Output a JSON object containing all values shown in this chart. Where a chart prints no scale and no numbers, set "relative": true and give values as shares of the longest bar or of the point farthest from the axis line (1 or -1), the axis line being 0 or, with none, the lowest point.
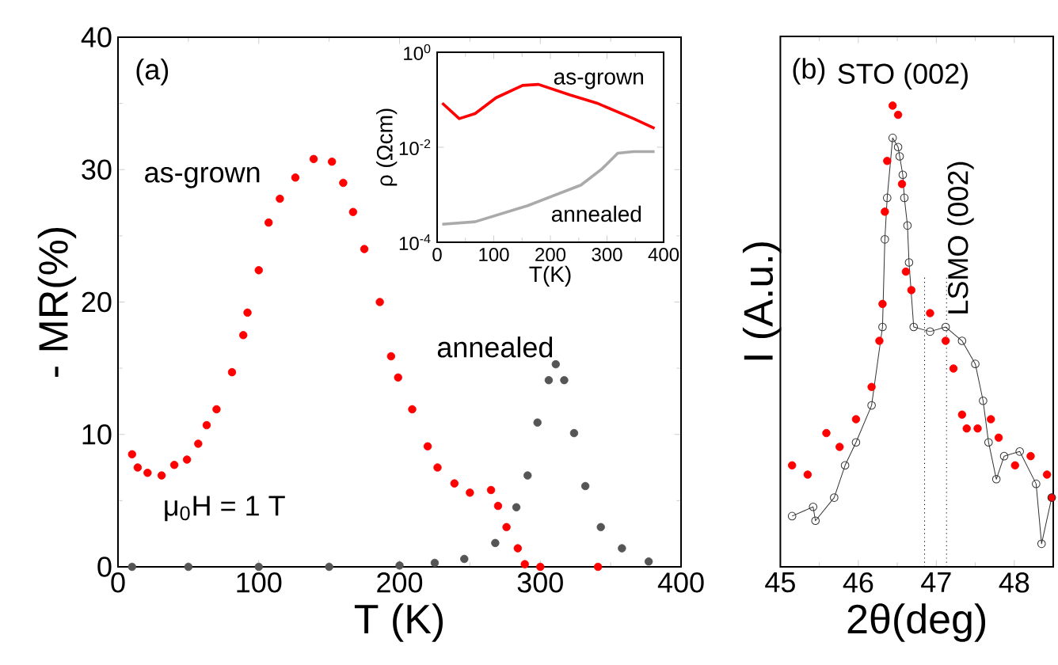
{
  "chart_data": [
    {
      "type": "scatter",
      "xlabel": "T (K)",
      "ylabel": "- MR(%)",
      "xlim": [
        0,
        400
      ],
      "ylim": [
        0,
        40
      ],
      "xticks": [
        0,
        100,
        200,
        300,
        400
      ],
      "yticks": [
        0,
        10,
        20,
        30,
        40
      ],
      "marker": "circle",
      "annotations": [
        "(a)",
        "μ$_{0}$H = 1 T"
      ],
      "series": [
        {
          "name": "as-grown",
          "color": "#ff0000",
          "x": [
            10,
            14,
            21,
            31,
            40,
            49,
            57,
            63,
            70,
            81,
            89,
            92,
            100,
            107,
            115,
            126,
            139,
            152,
            160,
            167,
            175,
            186,
            194,
            199,
            209,
            220,
            227,
            239,
            250,
            265,
            270,
            276,
            284,
            289,
            300,
            341
          ],
          "values": [
            8.5,
            7.5,
            7.1,
            6.9,
            7.7,
            8.1,
            9.3,
            10.7,
            11.9,
            14.7,
            17.5,
            19.2,
            22.4,
            26.0,
            27.8,
            29.4,
            30.8,
            30.6,
            29.0,
            26.8,
            24.0,
            20.0,
            15.9,
            14.3,
            11.9,
            9.1,
            7.5,
            6.3,
            5.6,
            5.8,
            4.6,
            3.0,
            1.4,
            0.2,
            0,
            0
          ]
        },
        {
          "name": "annealed",
          "color": "#555555",
          "x": [
            10,
            50,
            100,
            150,
            200,
            225,
            246,
            268,
            283,
            291,
            298,
            306,
            311,
            317,
            324,
            332,
            343,
            358,
            377
          ],
          "values": [
            0,
            0,
            0,
            0,
            0.1,
            0.3,
            0.6,
            1.8,
            4.5,
            6.9,
            10.9,
            14.1,
            15.3,
            14.1,
            10.1,
            6.1,
            3.0,
            1.4,
            0.4
          ]
        }
      ]
    },
    {
      "type": "line",
      "xlabel": "T(K)",
      "ylabel": "ρ (Ωcm)",
      "log": true,
      "xlim": [
        0,
        400
      ],
      "ylim": [
        0.0001,
        1
      ],
      "xticks": [
        0,
        100,
        200,
        300,
        400
      ],
      "yticks": [
        {
          "value": 0.0001,
          "label": "10$^{-4}$"
        },
        {
          "value": 0.01,
          "label": "10$^{-2}$"
        },
        {
          "value": 1,
          "label": "10$^{0}$"
        }
      ],
      "series": [
        {
          "name": "as-grown",
          "color": "#ff0000",
          "x": [
            9,
            39,
            67,
            104,
            151,
            179,
            235,
            282,
            347,
            384
          ],
          "values": [
            0.085,
            0.04,
            0.051,
            0.11,
            0.2,
            0.21,
            0.126,
            0.085,
            0.04,
            0.025
          ]
        },
        {
          "name": "annealed",
          "color": "#aaaaaa",
          "x": [
            9,
            67,
            160,
            254,
            291,
            319,
            347,
            384
          ],
          "values": [
            0.00024,
            0.00027,
            0.00059,
            0.0016,
            0.0035,
            0.0075,
            0.0081,
            0.0081
          ]
        }
      ]
    },
    {
      "type": "scatter",
      "relative": true,
      "xlabel": "2θ(deg)",
      "ylabel": "I (A.u.)",
      "xlim": [
        45,
        48.5
      ],
      "xticks": [
        45,
        46,
        47,
        48
      ],
      "marker": "circle",
      "annotations": [
        "(b)",
        "STO (002)",
        "LSMO (002)"
      ],
      "ref_lines": [
        {
          "axis": "x",
          "value": 46.85,
          "line_style": "dotted"
        },
        {
          "axis": "x",
          "value": 47.13,
          "line_style": "dotted"
        }
      ],
      "series": [
        {
          "color": "#ff0000",
          "x": [
            45.15,
            45.35,
            45.59,
            45.76,
            45.97,
            46.17,
            46.27,
            46.31,
            46.34,
            46.37,
            46.44,
            46.51,
            46.56,
            46.61,
            46.68,
            46.92,
            47.12,
            47.22,
            47.33,
            47.39,
            47.53,
            47.7,
            47.8,
            48.01,
            48.21,
            48.42,
            48.48
          ],
          "values": [
            0.22,
            0.2,
            0.29,
            0.26,
            0.32,
            0.39,
            0.49,
            0.57,
            0.77,
            0.88,
            1,
            0.98,
            0.83,
            0.64,
            0.6,
            0.55,
            0.49,
            0.43,
            0.33,
            0.3,
            0.3,
            0.32,
            0.28,
            0.22,
            0.24,
            0.2,
            0.15
          ]
        },
        {
          "type": "line",
          "color": "#333333",
          "x": [
            45.15,
            45.42,
            45.45,
            45.69,
            45.83,
            45.97,
            46.17,
            46.31,
            46.34,
            46.37,
            46.44,
            46.51,
            46.53,
            46.57,
            46.59,
            46.63,
            46.65,
            46.71,
            46.92,
            47.12,
            47.33,
            47.5,
            47.6,
            47.67,
            47.77,
            47.87,
            48.07,
            48.28,
            48.35,
            48.48
          ],
          "values": [
            0.11,
            0.13,
            0.1,
            0.15,
            0.22,
            0.27,
            0.35,
            0.52,
            0.71,
            0.8,
            0.93,
            0.91,
            0.89,
            0.85,
            0.8,
            0.74,
            0.66,
            0.52,
            0.51,
            0.52,
            0.49,
            0.44,
            0.36,
            0.27,
            0.19,
            0.24,
            0.25,
            0.18,
            0.05,
            0.15
          ]
        }
      ]
    }
  ]
}
